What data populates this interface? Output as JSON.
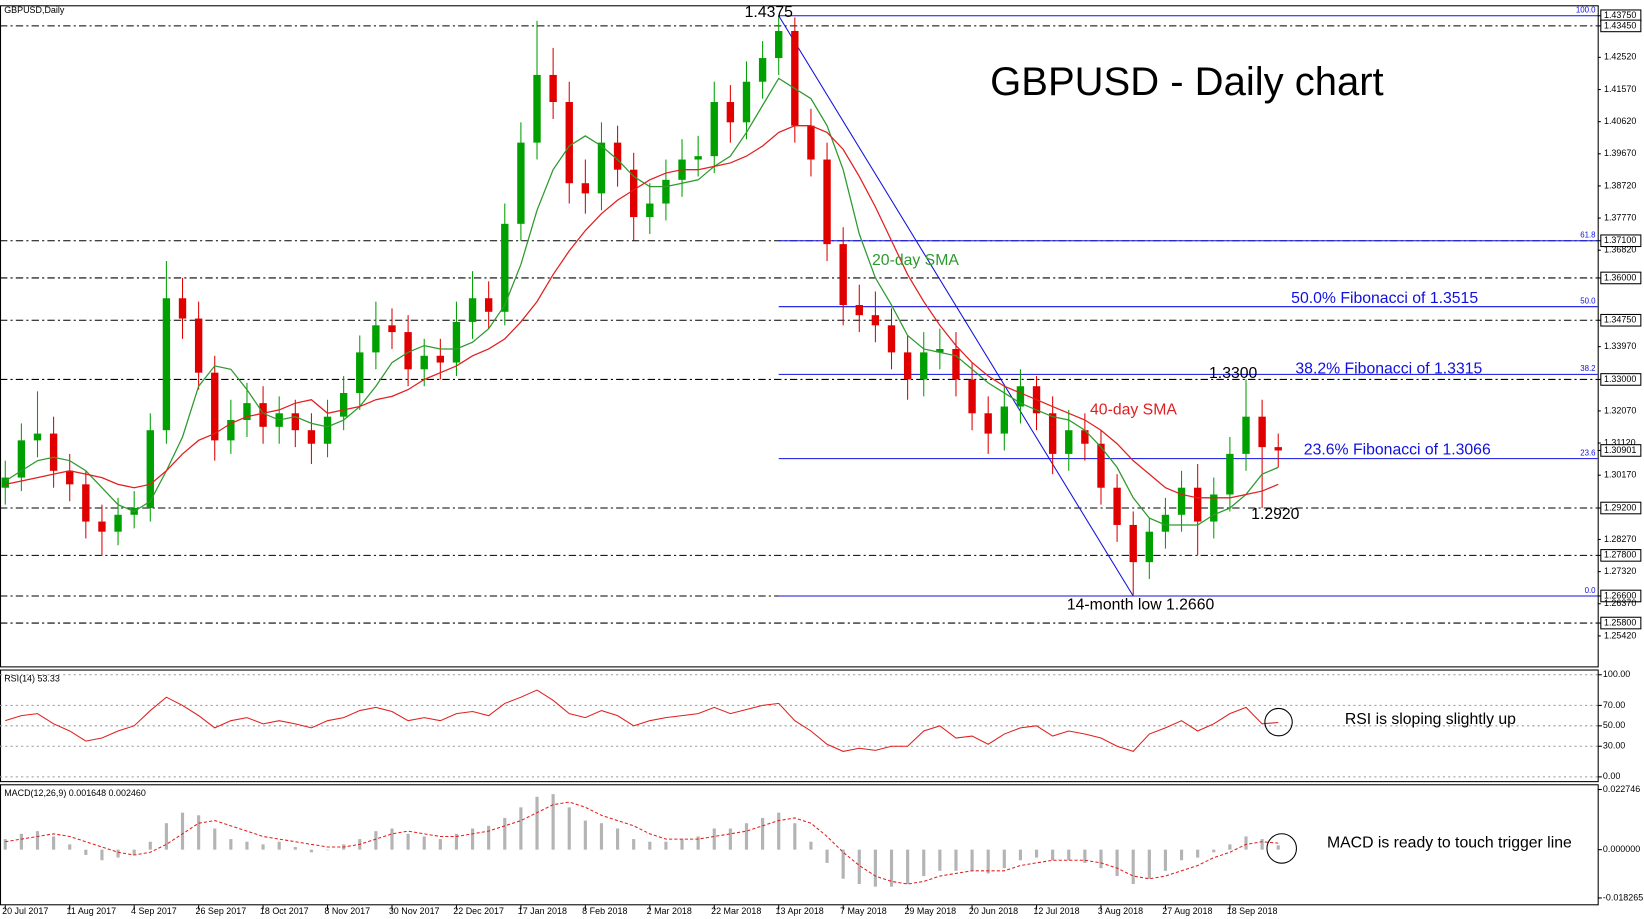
{
  "chart_data": [
    {
      "type": "candlestick",
      "title": "GBPUSD - Daily chart",
      "subtitle": "GBPUSD,Daily",
      "categories": [
        "20 Jul 2017",
        null,
        null,
        null,
        "11 Aug 2017",
        null,
        null,
        null,
        "4 Sep 2017",
        null,
        null,
        null,
        "26 Sep 2017",
        null,
        null,
        null,
        "18 Oct 2017",
        null,
        null,
        null,
        "8 Nov 2017",
        null,
        null,
        null,
        "30 Nov 2017",
        null,
        null,
        null,
        "22 Dec 2017",
        null,
        null,
        null,
        "17 Jan 2018",
        null,
        null,
        null,
        "8 Feb 2018",
        null,
        null,
        null,
        "2 Mar 2018",
        null,
        null,
        null,
        "22 Mar 2018",
        null,
        null,
        null,
        "13 Apr 2018",
        null,
        null,
        null,
        "7 May 2018",
        null,
        null,
        null,
        "29 May 2018",
        null,
        null,
        null,
        "20 Jun 2018",
        null,
        null,
        null,
        "12 Jul 2018",
        null,
        null,
        null,
        "3 Aug 2018",
        null,
        null,
        null,
        "27 Aug 2018",
        null,
        null,
        null,
        "18 Sep 2018",
        null,
        null,
        null
      ],
      "open": [
        1.298,
        1.301,
        1.312,
        1.314,
        1.303,
        1.299,
        1.288,
        1.285,
        1.29,
        1.292,
        1.315,
        1.354,
        1.348,
        1.332,
        1.312,
        1.318,
        1.323,
        1.316,
        1.32,
        1.315,
        1.311,
        1.319,
        1.326,
        1.338,
        1.346,
        1.344,
        1.333,
        1.337,
        1.335,
        1.347,
        1.354,
        1.35,
        1.376,
        1.4,
        1.42,
        1.412,
        1.388,
        1.385,
        1.4,
        1.392,
        1.378,
        1.382,
        1.389,
        1.395,
        1.396,
        1.412,
        1.406,
        1.418,
        1.425,
        1.433,
        1.405,
        1.395,
        1.37,
        1.352,
        1.349,
        1.346,
        1.338,
        1.33,
        1.338,
        1.339,
        1.33,
        1.32,
        1.314,
        1.322,
        1.328,
        1.32,
        1.308,
        1.315,
        1.311,
        1.298,
        1.287,
        1.276,
        1.285,
        1.29,
        1.298,
        1.288,
        1.296,
        1.308,
        1.319,
        1.31
      ],
      "high": [
        1.306,
        1.317,
        1.3265,
        1.319,
        1.308,
        1.303,
        1.293,
        1.295,
        1.297,
        1.32,
        1.365,
        1.36,
        1.353,
        1.337,
        1.324,
        1.329,
        1.328,
        1.325,
        1.324,
        1.32,
        1.324,
        1.331,
        1.343,
        1.353,
        1.351,
        1.349,
        1.342,
        1.342,
        1.353,
        1.362,
        1.359,
        1.382,
        1.406,
        1.436,
        1.428,
        1.418,
        1.395,
        1.406,
        1.405,
        1.397,
        1.388,
        1.395,
        1.401,
        1.402,
        1.418,
        1.417,
        1.424,
        1.43,
        1.4375,
        1.437,
        1.41,
        1.4,
        1.375,
        1.358,
        1.356,
        1.351,
        1.343,
        1.344,
        1.345,
        1.344,
        1.335,
        1.325,
        1.328,
        1.333,
        1.331,
        1.325,
        1.321,
        1.32,
        1.315,
        1.302,
        1.291,
        1.289,
        1.295,
        1.303,
        1.305,
        1.301,
        1.313,
        1.33,
        1.324,
        1.314
      ],
      "low": [
        1.293,
        1.297,
        1.307,
        1.298,
        1.294,
        1.283,
        1.278,
        1.281,
        1.286,
        1.288,
        1.311,
        1.342,
        1.327,
        1.306,
        1.308,
        1.313,
        1.311,
        1.311,
        1.31,
        1.305,
        1.307,
        1.315,
        1.321,
        1.333,
        1.339,
        1.328,
        1.328,
        1.33,
        1.331,
        1.342,
        1.345,
        1.346,
        1.371,
        1.395,
        1.407,
        1.382,
        1.379,
        1.38,
        1.387,
        1.371,
        1.373,
        1.377,
        1.384,
        1.39,
        1.391,
        1.4,
        1.401,
        1.413,
        1.42,
        1.4,
        1.39,
        1.365,
        1.346,
        1.344,
        1.341,
        1.333,
        1.324,
        1.325,
        1.333,
        1.325,
        1.315,
        1.308,
        1.309,
        1.317,
        1.315,
        1.302,
        1.303,
        1.306,
        1.293,
        1.282,
        1.266,
        1.271,
        1.28,
        1.285,
        1.278,
        1.283,
        1.291,
        1.303,
        1.292,
        1.304
      ],
      "close": [
        1.301,
        1.312,
        1.314,
        1.303,
        1.299,
        1.288,
        1.285,
        1.29,
        1.292,
        1.315,
        1.354,
        1.348,
        1.332,
        1.312,
        1.318,
        1.323,
        1.316,
        1.32,
        1.315,
        1.311,
        1.319,
        1.326,
        1.338,
        1.346,
        1.344,
        1.333,
        1.337,
        1.335,
        1.347,
        1.354,
        1.35,
        1.376,
        1.4,
        1.42,
        1.412,
        1.388,
        1.385,
        1.4,
        1.392,
        1.378,
        1.382,
        1.389,
        1.395,
        1.396,
        1.412,
        1.406,
        1.418,
        1.425,
        1.433,
        1.405,
        1.395,
        1.37,
        1.352,
        1.349,
        1.346,
        1.338,
        1.33,
        1.338,
        1.339,
        1.33,
        1.32,
        1.314,
        1.322,
        1.328,
        1.32,
        1.308,
        1.315,
        1.311,
        1.298,
        1.287,
        1.276,
        1.285,
        1.29,
        1.298,
        1.288,
        1.296,
        1.308,
        1.319,
        1.31,
        1.30901
      ],
      "up_color": "#00a000",
      "down_color": "#e00000",
      "series": [
        {
          "name": "20-day SMA",
          "color": "#2e9a2e",
          "values": [
            1.3,
            1.303,
            1.306,
            1.307,
            1.306,
            1.303,
            1.298,
            1.293,
            1.291,
            1.294,
            1.303,
            1.313,
            1.328,
            1.334,
            1.333,
            1.327,
            1.32,
            1.318,
            1.319,
            1.317,
            1.316,
            1.318,
            1.322,
            1.328,
            1.335,
            1.338,
            1.34,
            1.339,
            1.339,
            1.341,
            1.345,
            1.352,
            1.364,
            1.38,
            1.392,
            1.399,
            1.402,
            1.399,
            1.395,
            1.39,
            1.387,
            1.387,
            1.388,
            1.389,
            1.393,
            1.396,
            1.403,
            1.411,
            1.419,
            1.416,
            1.413,
            1.405,
            1.392,
            1.373,
            1.36,
            1.352,
            1.343,
            1.339,
            1.338,
            1.337,
            1.333,
            1.329,
            1.326,
            1.323,
            1.321,
            1.319,
            1.318,
            1.315,
            1.31,
            1.304,
            1.295,
            1.289,
            1.287,
            1.287,
            1.287,
            1.29,
            1.292,
            1.296,
            1.302,
            1.304
          ]
        },
        {
          "name": "40-day SMA",
          "color": "#e02020",
          "values": [
            1.299,
            1.3,
            1.301,
            1.302,
            1.303,
            1.302,
            1.301,
            1.299,
            1.298,
            1.299,
            1.303,
            1.308,
            1.312,
            1.314,
            1.317,
            1.319,
            1.32,
            1.321,
            1.323,
            1.324,
            1.32,
            1.321,
            1.322,
            1.324,
            1.325,
            1.327,
            1.33,
            1.332,
            1.334,
            1.337,
            1.339,
            1.342,
            1.347,
            1.353,
            1.361,
            1.368,
            1.374,
            1.379,
            1.383,
            1.386,
            1.389,
            1.391,
            1.392,
            1.392,
            1.393,
            1.394,
            1.396,
            1.399,
            1.403,
            1.405,
            1.405,
            1.403,
            1.398,
            1.39,
            1.381,
            1.371,
            1.361,
            1.353,
            1.346,
            1.34,
            1.335,
            1.331,
            1.328,
            1.326,
            1.324,
            1.322,
            1.32,
            1.318,
            1.315,
            1.311,
            1.306,
            1.302,
            1.298,
            1.296,
            1.295,
            1.295,
            1.295,
            1.296,
            1.297,
            1.299
          ]
        }
      ],
      "ylim": [
        1.2452,
        1.4406
      ],
      "yticks": [
        {
          "value": 1.4375,
          "label": "1.43750"
        },
        {
          "value": 1.4345,
          "label": "1.43450"
        },
        {
          "value": 1.4252,
          "label": "1.42520"
        },
        {
          "value": 1.4157,
          "label": "1.41570"
        },
        {
          "value": 1.4062,
          "label": "1.40620"
        },
        {
          "value": 1.3967,
          "label": "1.39670"
        },
        {
          "value": 1.3872,
          "label": "1.38720"
        },
        {
          "value": 1.3777,
          "label": "1.37770"
        },
        {
          "value": 1.371,
          "label": "1.37100"
        },
        {
          "value": 1.3682,
          "label": "1.36820"
        },
        {
          "value": 1.36,
          "label": "1.36000"
        },
        {
          "value": 1.3475,
          "label": "1.34750"
        },
        {
          "value": 1.3397,
          "label": "1.33970"
        },
        {
          "value": 1.33,
          "label": "1.33000"
        },
        {
          "value": 1.3207,
          "label": "1.32070"
        },
        {
          "value": 1.3112,
          "label": "1.31120"
        },
        {
          "value": 1.30901,
          "label": "1.30901"
        },
        {
          "value": 1.3017,
          "label": "1.30170"
        },
        {
          "value": 1.292,
          "label": "1.29200"
        },
        {
          "value": 1.2827,
          "label": "1.28270"
        },
        {
          "value": 1.278,
          "label": "1.27800"
        },
        {
          "value": 1.2732,
          "label": "1.27320"
        },
        {
          "value": 1.266,
          "label": "1.26600"
        },
        {
          "value": 1.2637,
          "label": "1.26370"
        },
        {
          "value": 1.258,
          "label": "1.25800"
        },
        {
          "value": 1.2542,
          "label": "1.25420"
        }
      ],
      "levels": [
        1.4345,
        1.371,
        1.36,
        1.3475,
        1.33,
        1.292,
        1.278,
        1.266,
        1.258
      ],
      "fibonacci": {
        "color": "#1010e0",
        "labels": [
          "100.0",
          "61.8",
          "50.0",
          "38.2",
          "23.6",
          "0.0"
        ],
        "prices": [
          1.4375,
          1.371,
          1.3515,
          1.3315,
          1.3066,
          1.266
        ]
      },
      "annotations": {
        "swing_high": "1.4375",
        "swing_mid": "1.3300",
        "swing_low": "1.2920",
        "low": "14-month low 1.2660",
        "fib_50": "50.0% Fibonacci of 1.3515",
        "fib_38": "38.2% Fibonacci of 1.3315",
        "fib_23": "23.6% Fibonacci of 1.3066"
      }
    },
    {
      "type": "line",
      "title": "RSI(14) 53.33",
      "note": "RSI is sloping slightly up",
      "color": "#e02020",
      "values": [
        55,
        60,
        62,
        52,
        45,
        35,
        38,
        45,
        50,
        65,
        78,
        70,
        60,
        48,
        55,
        58,
        52,
        55,
        52,
        48,
        55,
        58,
        65,
        68,
        64,
        55,
        58,
        55,
        62,
        64,
        60,
        72,
        78,
        85,
        75,
        62,
        58,
        65,
        60,
        50,
        55,
        58,
        60,
        62,
        68,
        62,
        66,
        70,
        72,
        55,
        45,
        32,
        25,
        28,
        26,
        30,
        30,
        45,
        50,
        38,
        40,
        32,
        42,
        48,
        50,
        40,
        45,
        42,
        38,
        30,
        25,
        42,
        48,
        55,
        45,
        52,
        62,
        68,
        52,
        53.33
      ],
      "ylim": [
        0,
        100
      ],
      "yticks": [
        {
          "value": 100,
          "label": "100.00"
        },
        {
          "value": 70,
          "label": "70.00"
        },
        {
          "value": 50,
          "label": "50.00"
        },
        {
          "value": 30,
          "label": "30.00"
        },
        {
          "value": 0,
          "label": "0.00"
        }
      ],
      "grid": true
    },
    {
      "type": "macd",
      "title": "MACD(12,26,9) 0.001648 0.002460",
      "note": "MACD is ready to touch trigger line",
      "series": [
        {
          "color": "#b4b4b4",
          "values": [
            0.004,
            0.006,
            0.007,
            0.005,
            0.002,
            -0.002,
            -0.004,
            -0.003,
            -0.002,
            0.003,
            0.01,
            0.014,
            0.013,
            0.008,
            0.004,
            0.003,
            0.002,
            0.003,
            0.001,
            -0.001,
            0,
            0.002,
            0.004,
            0.007,
            0.008,
            0.006,
            0.005,
            0.004,
            0.006,
            0.008,
            0.009,
            0.012,
            0.016,
            0.02,
            0.021,
            0.016,
            0.011,
            0.01,
            0.008,
            0.004,
            0.003,
            0.003,
            0.004,
            0.005,
            0.008,
            0.008,
            0.01,
            0.012,
            0.014,
            0.01,
            0.003,
            -0.005,
            -0.011,
            -0.013,
            -0.014,
            -0.014,
            -0.013,
            -0.01,
            -0.008,
            -0.008,
            -0.008,
            -0.009,
            -0.007,
            -0.004,
            -0.003,
            -0.004,
            -0.004,
            -0.005,
            -0.007,
            -0.01,
            -0.013,
            -0.011,
            -0.008,
            -0.004,
            -0.003,
            -0.001,
            0.002,
            0.005,
            0.004,
            0.001648
          ]
        },
        {
          "color": "#e02020",
          "values": [
            0.003,
            0.004,
            0.005,
            0.006,
            0.005,
            0.003,
            0.001,
            -0.001,
            -0.002,
            -0.001,
            0.002,
            0.006,
            0.01,
            0.011,
            0.009,
            0.007,
            0.005,
            0.004,
            0.003,
            0.002,
            0.001,
            0.001,
            0.002,
            0.004,
            0.006,
            0.007,
            0.006,
            0.005,
            0.005,
            0.006,
            0.007,
            0.009,
            0.011,
            0.014,
            0.017,
            0.018,
            0.016,
            0.013,
            0.011,
            0.009,
            0.006,
            0.004,
            0.004,
            0.004,
            0.005,
            0.006,
            0.007,
            0.009,
            0.011,
            0.012,
            0.01,
            0.005,
            -0.001,
            -0.006,
            -0.01,
            -0.012,
            -0.013,
            -0.012,
            -0.01,
            -0.009,
            -0.008,
            -0.008,
            -0.008,
            -0.006,
            -0.005,
            -0.004,
            -0.004,
            -0.004,
            -0.005,
            -0.007,
            -0.01,
            -0.011,
            -0.01,
            -0.008,
            -0.006,
            -0.003,
            -0.001,
            0.002,
            0.003,
            0.00246
          ]
        }
      ],
      "ylim": [
        -0.018265,
        0.022746
      ],
      "yticks": [
        0.022746,
        {
          "value": 0,
          "label": "0.000000"
        },
        -0.018265
      ]
    }
  ]
}
